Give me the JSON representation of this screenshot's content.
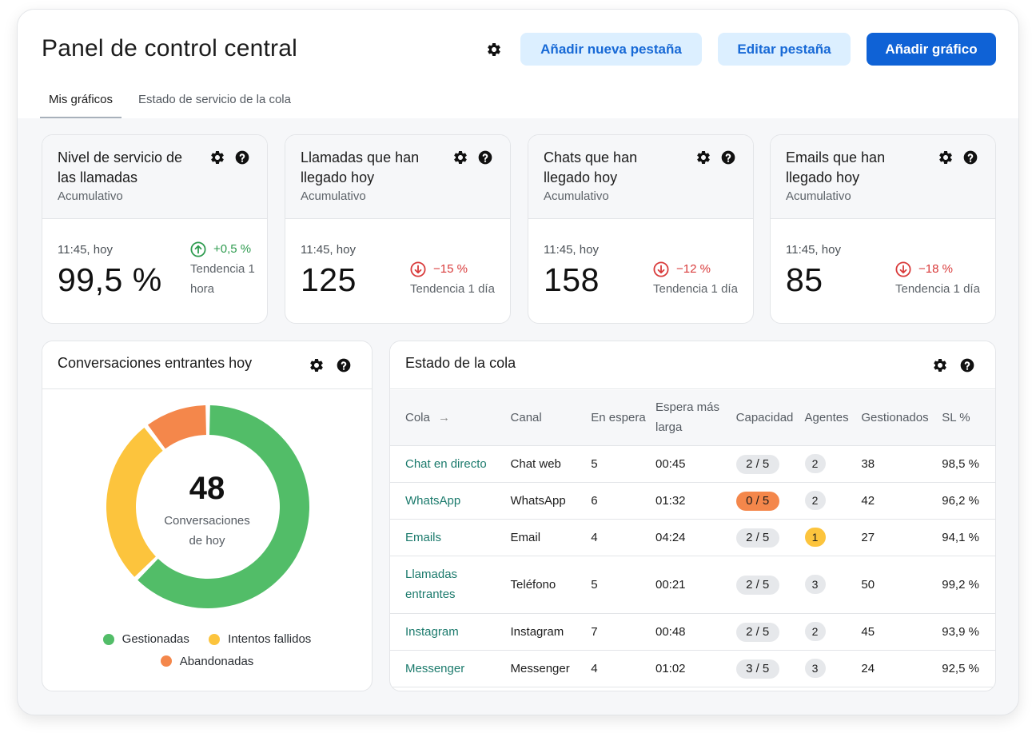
{
  "header": {
    "title": "Panel de control central",
    "add_tab_label": "Añadir nueva pestaña",
    "edit_tab_label": "Editar pestaña",
    "add_chart_label": "Añadir gráfico"
  },
  "tabs": [
    {
      "label": "Mis gráficos",
      "active": true
    },
    {
      "label": "Estado de servicio de la cola",
      "active": false
    }
  ],
  "kpis": [
    {
      "title": "Nivel de servicio de las llamadas",
      "subtitle": "Acumulativo",
      "time": "11:45, hoy",
      "value": "99,5 %",
      "trend_value": "+0,5 %",
      "trend_direction": "up",
      "trend_label": "Tendencia 1 hora"
    },
    {
      "title": "Llamadas que han llegado hoy",
      "subtitle": "Acumulativo",
      "time": "11:45, hoy",
      "value": "125",
      "trend_value": "−15 %",
      "trend_direction": "down",
      "trend_label": "Tendencia 1 día"
    },
    {
      "title": "Chats que han llegado hoy",
      "subtitle": "Acumulativo",
      "time": "11:45, hoy",
      "value": "158",
      "trend_value": "−12 %",
      "trend_direction": "down",
      "trend_label": "Tendencia 1 día"
    },
    {
      "title": "Emails que han llegado hoy",
      "subtitle": "Acumulativo",
      "time": "11:45, hoy",
      "value": "85",
      "trend_value": "−18 %",
      "trend_direction": "down",
      "trend_label": "Tendencia 1 día"
    }
  ],
  "conversations": {
    "title": "Conversaciones entrantes hoy",
    "total": "48",
    "center_label_1": "Conversaciones",
    "center_label_2": "de hoy",
    "legend": [
      {
        "label": "Gestionadas",
        "color": "#52bd68"
      },
      {
        "label": "Intentos fallidos",
        "color": "#fcc43d"
      },
      {
        "label": "Abandonadas",
        "color": "#f4874b"
      }
    ]
  },
  "chart_data": {
    "type": "pie",
    "categories": [
      "Gestionadas",
      "Intentos fallidos",
      "Abandonadas"
    ],
    "values": [
      30,
      13,
      5
    ],
    "colors": [
      "#52bd68",
      "#fcc43d",
      "#f4874b"
    ],
    "title": "Conversaciones entrantes hoy",
    "donut": true,
    "legend": "bottom"
  },
  "queue": {
    "title": "Estado de la cola",
    "columns": [
      "Cola",
      "Canal",
      "En espera",
      "Espera más larga",
      "Capacidad",
      "Agentes",
      "Gestionados",
      "SL %"
    ],
    "rows": [
      {
        "cola": "Chat en directo",
        "canal": "Chat web",
        "espera": "5",
        "larga": "00:45",
        "capacidad": "2 / 5",
        "cap_alert": false,
        "agentes": "2",
        "ag_warn": false,
        "gestionados": "38",
        "sl": "98,5 %"
      },
      {
        "cola": "WhatsApp",
        "canal": "WhatsApp",
        "espera": "6",
        "larga": "01:32",
        "capacidad": "0 / 5",
        "cap_alert": true,
        "agentes": "2",
        "ag_warn": false,
        "gestionados": "42",
        "sl": "96,2 %"
      },
      {
        "cola": "Emails",
        "canal": "Email",
        "espera": "4",
        "larga": "04:24",
        "capacidad": "2 / 5",
        "cap_alert": false,
        "agentes": "1",
        "ag_warn": true,
        "gestionados": "27",
        "sl": "94,1 %"
      },
      {
        "cola": "Llamadas entrantes",
        "canal": "Teléfono",
        "espera": "5",
        "larga": "00:21",
        "capacidad": "2 / 5",
        "cap_alert": false,
        "agentes": "3",
        "ag_warn": false,
        "gestionados": "50",
        "sl": "99,2 %"
      },
      {
        "cola": "Instagram",
        "canal": "Instagram",
        "espera": "7",
        "larga": "00:48",
        "capacidad": "2 / 5",
        "cap_alert": false,
        "agentes": "2",
        "ag_warn": false,
        "gestionados": "45",
        "sl": "93,9 %"
      },
      {
        "cola": "Messenger",
        "canal": "Messenger",
        "espera": "4",
        "larga": "01:02",
        "capacidad": "3 / 5",
        "cap_alert": false,
        "agentes": "3",
        "ag_warn": false,
        "gestionados": "24",
        "sl": "92,5 %"
      }
    ]
  }
}
